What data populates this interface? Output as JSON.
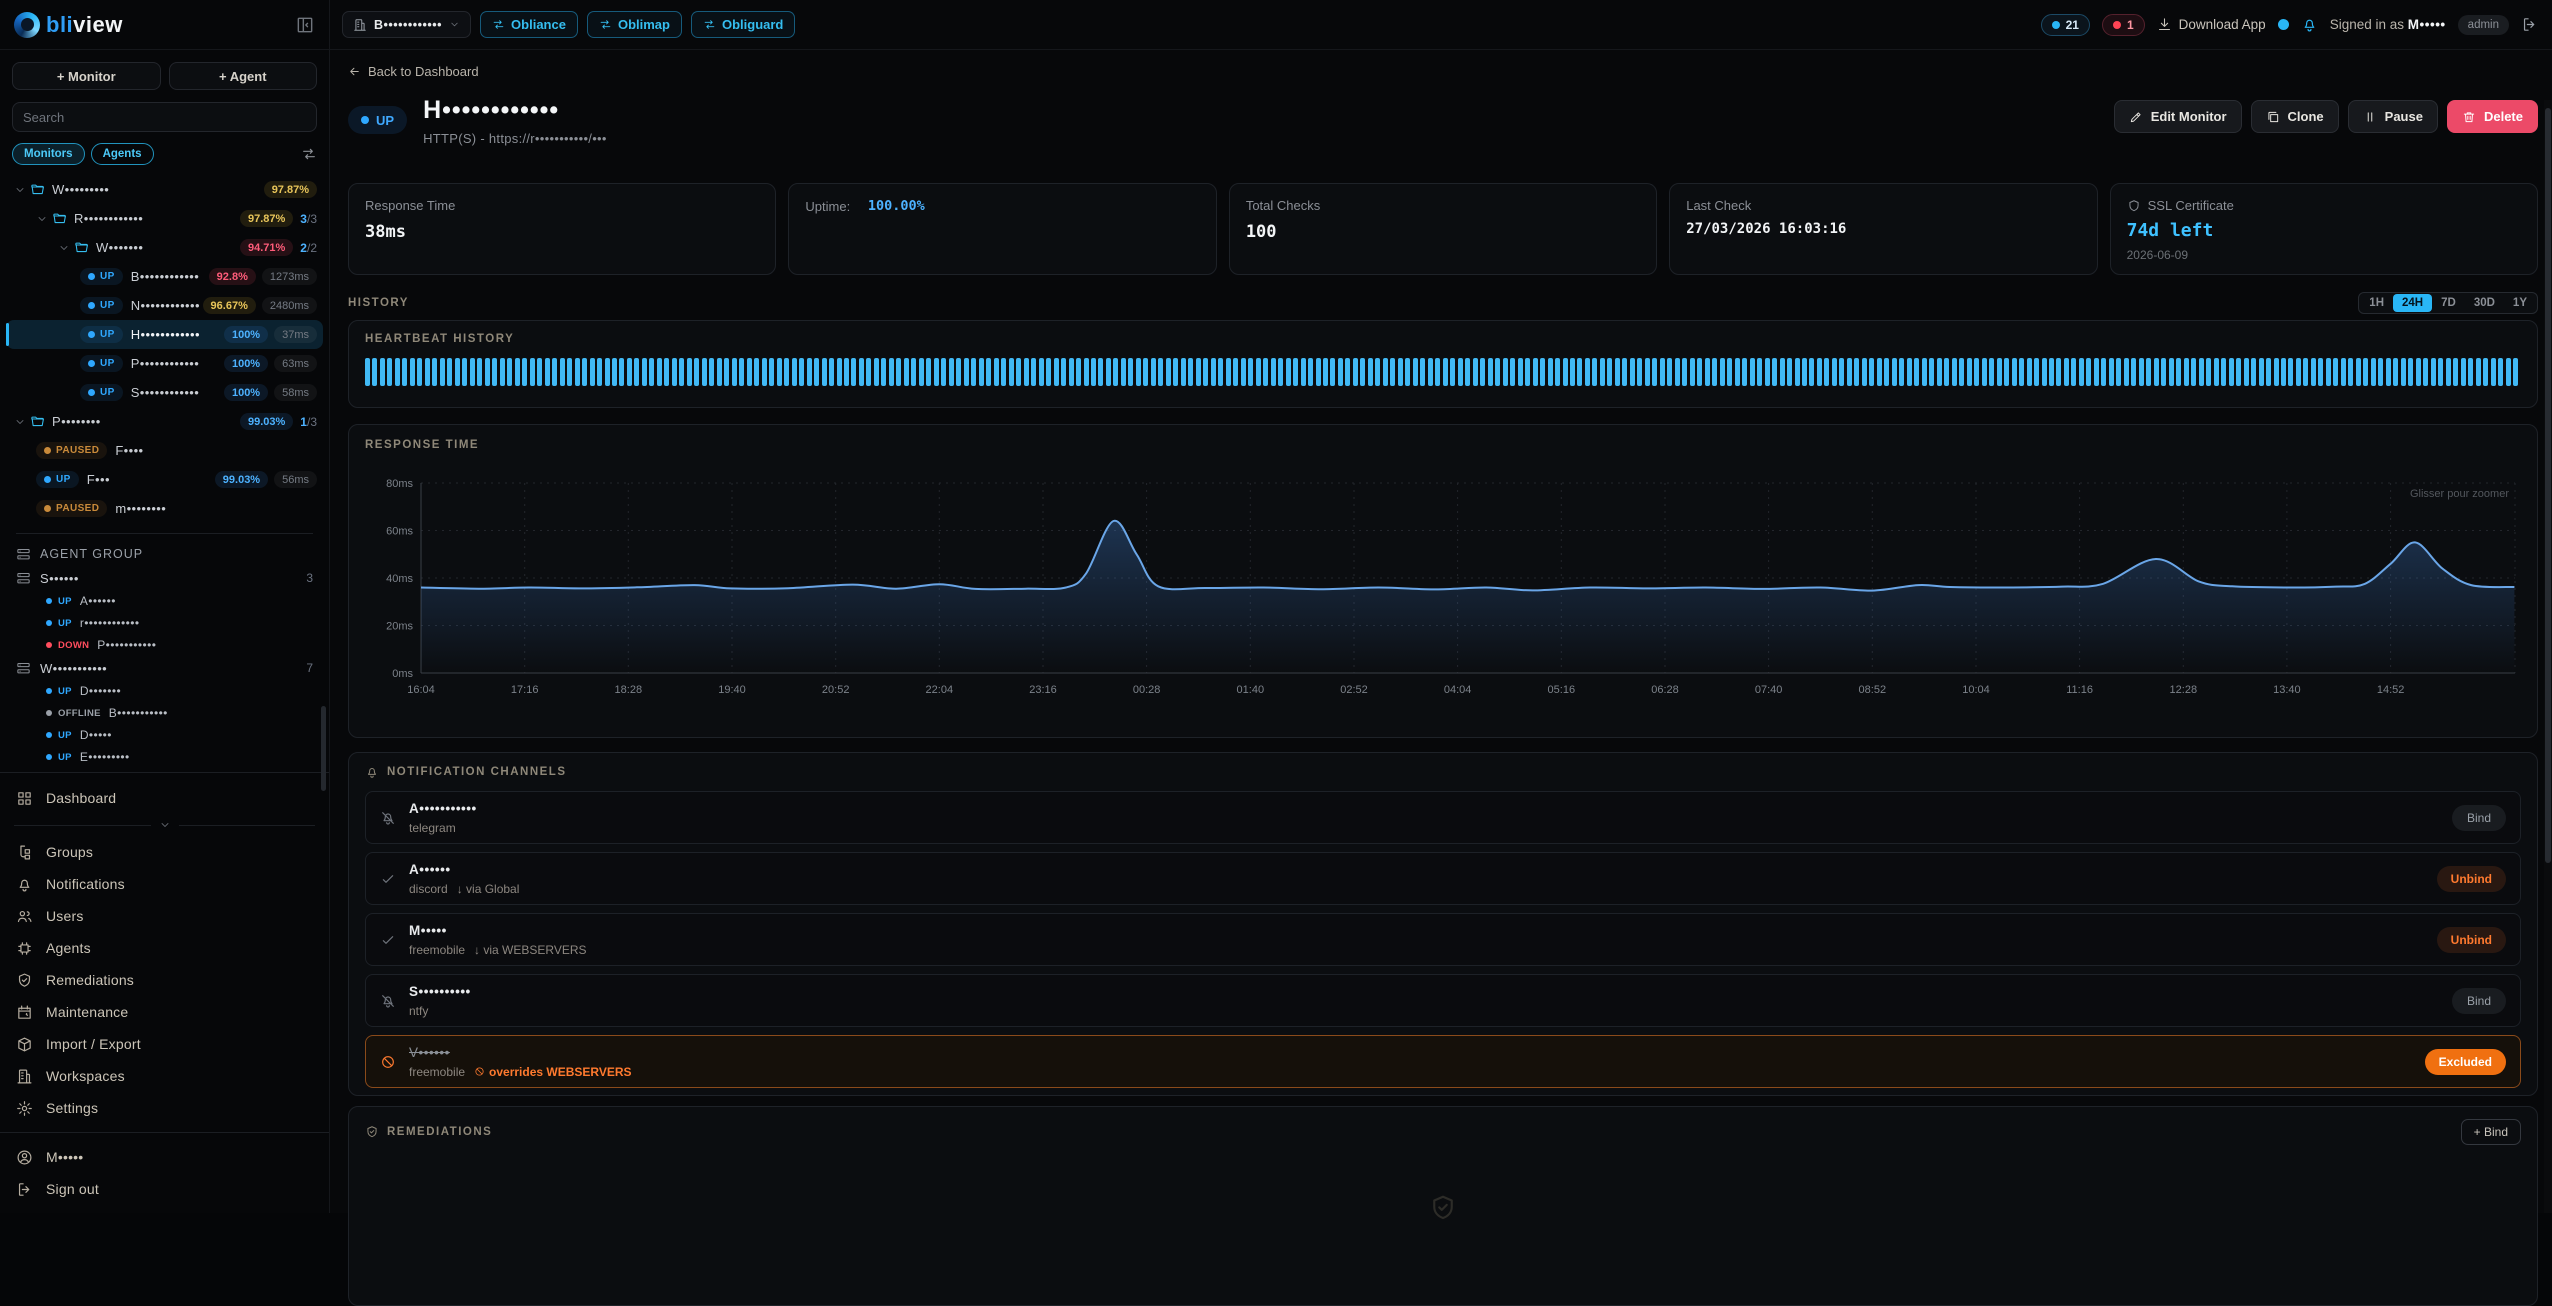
{
  "brand": {
    "logo_blue": "bli",
    "logo_white": "view"
  },
  "sidebar": {
    "add_monitor_label": "+ Monitor",
    "add_agent_label": "+ Agent",
    "search_placeholder": "Search",
    "filter_pills": [
      "Monitors",
      "Agents"
    ],
    "tree": [
      {
        "type": "folder",
        "depth": 0,
        "label": "W•••••••••",
        "badge": "97.87%",
        "badge_color": "yellow"
      },
      {
        "type": "folder",
        "depth": 1,
        "label": "R••••••••••••",
        "badge": "97.87%",
        "badge_color": "yellow",
        "count": "3/3"
      },
      {
        "type": "folder",
        "depth": 2,
        "label": "W•••••••",
        "badge": "94.71%",
        "badge_color": "red",
        "count": "2/2"
      },
      {
        "type": "monitor",
        "depth": 3,
        "status": "UP",
        "label": "B••••••••••••",
        "badge": "92.8%",
        "badge_color": "red",
        "ms": "1273ms"
      },
      {
        "type": "monitor",
        "depth": 3,
        "status": "UP",
        "label": "N••••••••••••",
        "badge": "96.67%",
        "badge_color": "yellow",
        "ms": "2480ms"
      },
      {
        "type": "monitor",
        "depth": 3,
        "status": "UP",
        "label": "H••••••••••••",
        "badge": "100%",
        "badge_color": "blue",
        "ms": "37ms",
        "selected": true
      },
      {
        "type": "monitor",
        "depth": 3,
        "status": "UP",
        "label": "P••••••••••••",
        "badge": "100%",
        "badge_color": "blue",
        "ms": "63ms"
      },
      {
        "type": "monitor",
        "depth": 3,
        "status": "UP",
        "label": "S••••••••••••",
        "badge": "100%",
        "badge_color": "blue",
        "ms": "58ms"
      },
      {
        "type": "folder",
        "depth": 0,
        "label": "P••••••••",
        "badge": "99.03%",
        "badge_color": "blue",
        "count": "1/3"
      },
      {
        "type": "monitor",
        "depth": 1,
        "status": "PAUSED",
        "label": "F••••"
      },
      {
        "type": "monitor",
        "depth": 1,
        "status": "UP",
        "label": "F•••",
        "badge": "99.03%",
        "badge_color": "blue",
        "ms": "56ms"
      },
      {
        "type": "monitor",
        "depth": 1,
        "status": "PAUSED",
        "label": "m••••••••"
      }
    ],
    "agent_group_header": "AGENT GROUP",
    "agent_groups": [
      {
        "label": "S••••••",
        "count": "3",
        "agents": [
          {
            "status": "UP",
            "label": "A••••••"
          },
          {
            "status": "UP",
            "label": "r••••••••••••"
          },
          {
            "status": "DOWN",
            "label": "P•••••••••••"
          }
        ]
      },
      {
        "label": "W•••••••••••",
        "count": "7",
        "agents": [
          {
            "status": "UP",
            "label": "D•••••••"
          },
          {
            "status": "OFFLINE",
            "label": "B•••••••••••"
          },
          {
            "status": "UP",
            "label": "D•••••"
          },
          {
            "status": "UP",
            "label": "E•••••••••"
          }
        ]
      }
    ],
    "nav_top": [
      {
        "icon": "dashboard",
        "label": "Dashboard"
      }
    ],
    "nav": [
      {
        "icon": "groups",
        "label": "Groups"
      },
      {
        "icon": "bell",
        "label": "Notifications"
      },
      {
        "icon": "users",
        "label": "Users"
      },
      {
        "icon": "chip",
        "label": "Agents"
      },
      {
        "icon": "shield-check",
        "label": "Remediations"
      },
      {
        "icon": "calendar",
        "label": "Maintenance"
      },
      {
        "icon": "box",
        "label": "Import / Export"
      },
      {
        "icon": "building",
        "label": "Workspaces"
      },
      {
        "icon": "gear",
        "label": "Settings"
      }
    ],
    "user_label": "M•••••",
    "signout_label": "Sign out"
  },
  "topbar": {
    "workspace": "B••••••••••••",
    "links": [
      "Obliance",
      "Oblimap",
      "Obliguard"
    ],
    "up_count": "21",
    "down_count": "1",
    "download_label": "Download App",
    "signed_in_prefix": "Signed in as",
    "signed_in_user": "M•••••",
    "role_badge": "admin"
  },
  "monitor": {
    "back_label": "Back to Dashboard",
    "status": "UP",
    "title": "H••••••••••••",
    "subtitle": "HTTP(S) - https://r•••••••••••/•••",
    "actions": {
      "edit": "Edit Monitor",
      "clone": "Clone",
      "pause": "Pause",
      "delete": "Delete"
    }
  },
  "stats": {
    "response_time": {
      "label": "Response Time",
      "value": "38ms"
    },
    "uptime": {
      "label": "Uptime:",
      "value": "100.00%"
    },
    "total_checks": {
      "label": "Total Checks",
      "value": "100"
    },
    "last_check": {
      "label": "Last Check",
      "value": "27/03/2026 16:03:16"
    },
    "ssl": {
      "label": "SSL Certificate",
      "value": "74d left",
      "date": "2026-06-09"
    }
  },
  "history": {
    "label": "HISTORY",
    "ranges": [
      "1H",
      "24H",
      "7D",
      "30D",
      "1Y"
    ],
    "active_range": "24H",
    "heartbeat_label": "HEARTBEAT HISTORY",
    "heartbeat_bar_count": 288,
    "heartbeat_status": "up",
    "heartbeat_color": "#41b9f5"
  },
  "chart_data": {
    "type": "area",
    "title": "RESPONSE TIME",
    "hint": "Glisser pour zoomer",
    "ylabel_unit": "ms",
    "ylim": [
      0,
      80
    ],
    "yticks": [
      "0ms",
      "20ms",
      "40ms",
      "60ms",
      "80ms"
    ],
    "xticks": [
      "16:04",
      "17:16",
      "18:28",
      "19:40",
      "20:52",
      "22:04",
      "23:16",
      "00:28",
      "01:40",
      "02:52",
      "04:04",
      "05:16",
      "06:28",
      "07:40",
      "08:52",
      "10:04",
      "11:16",
      "12:28",
      "13:40",
      "14:52"
    ],
    "tick_interval_minutes": 72,
    "line_color": "#6aa6e8",
    "grid": true,
    "points": [
      [
        0,
        36
      ],
      [
        40,
        35.5
      ],
      [
        75,
        36
      ],
      [
        110,
        35.6
      ],
      [
        150,
        36.1
      ],
      [
        190,
        37
      ],
      [
        215,
        35.6
      ],
      [
        255,
        35.7
      ],
      [
        300,
        37.2
      ],
      [
        330,
        35.5
      ],
      [
        360,
        37.4
      ],
      [
        385,
        35.4
      ],
      [
        420,
        35.5
      ],
      [
        448,
        36
      ],
      [
        462,
        42
      ],
      [
        481,
        64
      ],
      [
        497,
        50
      ],
      [
        512,
        36.5
      ],
      [
        545,
        35.8
      ],
      [
        585,
        36
      ],
      [
        625,
        35.3
      ],
      [
        665,
        36
      ],
      [
        705,
        35.2
      ],
      [
        740,
        36
      ],
      [
        772,
        34.8
      ],
      [
        812,
        36
      ],
      [
        852,
        35.6
      ],
      [
        892,
        36
      ],
      [
        932,
        35.4
      ],
      [
        972,
        36
      ],
      [
        1008,
        34.7
      ],
      [
        1040,
        37
      ],
      [
        1062,
        36.2
      ],
      [
        1100,
        36
      ],
      [
        1140,
        36.4
      ],
      [
        1168,
        37.5
      ],
      [
        1205,
        48
      ],
      [
        1235,
        38.5
      ],
      [
        1258,
        36.5
      ],
      [
        1295,
        36
      ],
      [
        1330,
        36.4
      ],
      [
        1350,
        37.5
      ],
      [
        1368,
        46
      ],
      [
        1385,
        55
      ],
      [
        1404,
        44
      ],
      [
        1424,
        37
      ],
      [
        1454,
        36.2
      ]
    ]
  },
  "notifications": {
    "header": "NOTIFICATION CHANNELS",
    "channels": [
      {
        "name": "A•••••••••••",
        "type": "telegram",
        "state": "unbound",
        "action": "Bind"
      },
      {
        "name": "A••••••",
        "type": "discord",
        "via": "↓ via Global",
        "state": "bound",
        "action": "Unbind"
      },
      {
        "name": "M•••••",
        "type": "freemobile",
        "via": "↓ via WEBSERVERS",
        "state": "bound",
        "action": "Unbind"
      },
      {
        "name": "S••••••••••",
        "type": "ntfy",
        "state": "unbound",
        "action": "Bind"
      },
      {
        "name": "V••••••",
        "type": "freemobile",
        "override": "overrides WEBSERVERS",
        "state": "excluded",
        "action": "Excluded"
      }
    ]
  },
  "remediations": {
    "header": "REMEDIATIONS",
    "bind_label": "+ Bind"
  },
  "colors": {
    "accent": "#29b6f6",
    "up": "#2fa8ff",
    "down": "#ff4d5e",
    "paused": "#c98a3a",
    "offline": "#9aa0a8",
    "warning": "#e8c55a",
    "danger": "#ff5c7a",
    "orange": "#ff7a2f",
    "delete": "#ec4a68"
  }
}
